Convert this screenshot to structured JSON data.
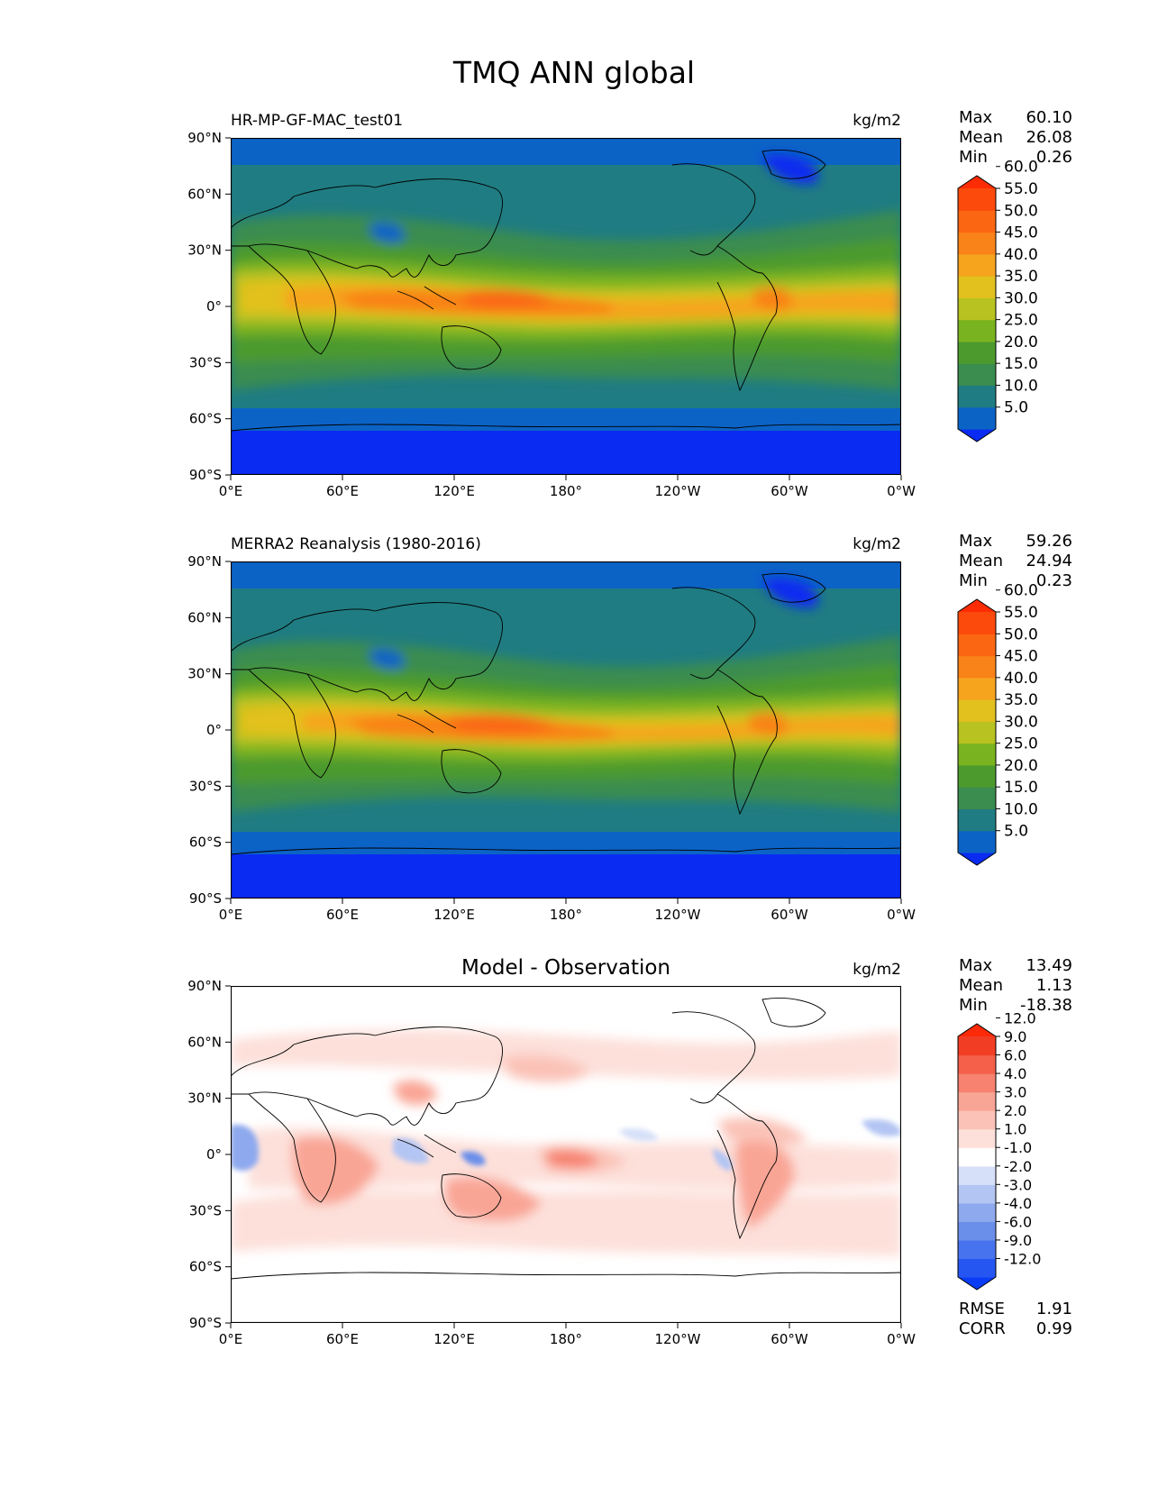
{
  "figure": {
    "title": "TMQ ANN global"
  },
  "chart_data": [
    {
      "type": "heatmap",
      "panel": "test",
      "title": "HR-MP-GF-MAC_test01",
      "units": "kg/m2",
      "stats": [
        {
          "label": "Max",
          "value": "60.10"
        },
        {
          "label": "Mean",
          "value": "26.08"
        },
        {
          "label": "Min",
          "value": "0.26"
        }
      ],
      "colorbar": {
        "ticks": [
          "5.0",
          "10.0",
          "15.0",
          "20.0",
          "25.0",
          "30.0",
          "35.0",
          "40.0",
          "45.0",
          "50.0",
          "55.0",
          "60.0"
        ],
        "colors": [
          "#0a2bf2",
          "#0c63c6",
          "#1f7c82",
          "#3a8c4f",
          "#4c9a2e",
          "#7ab320",
          "#b8c221",
          "#e2c11f",
          "#f6a41e",
          "#f98318",
          "#fb6612",
          "#fc4a0c",
          "#fd2c05"
        ],
        "extend": "both"
      },
      "xticks": [
        "0°E",
        "60°E",
        "120°E",
        "180°",
        "120°W",
        "60°W",
        "0°W"
      ],
      "yticks": [
        "90°N",
        "60°N",
        "30°N",
        "0°",
        "30°S",
        "60°S",
        "90°S"
      ],
      "xlim": [
        0,
        360
      ],
      "ylim": [
        -90,
        90
      ]
    },
    {
      "type": "heatmap",
      "panel": "reference",
      "title": "MERRA2 Reanalysis (1980-2016)",
      "units": "kg/m2",
      "stats": [
        {
          "label": "Max",
          "value": "59.26"
        },
        {
          "label": "Mean",
          "value": "24.94"
        },
        {
          "label": "Min",
          "value": "0.23"
        }
      ],
      "colorbar": {
        "ticks": [
          "5.0",
          "10.0",
          "15.0",
          "20.0",
          "25.0",
          "30.0",
          "35.0",
          "40.0",
          "45.0",
          "50.0",
          "55.0",
          "60.0"
        ],
        "colors": [
          "#0a2bf2",
          "#0c63c6",
          "#1f7c82",
          "#3a8c4f",
          "#4c9a2e",
          "#7ab320",
          "#b8c221",
          "#e2c11f",
          "#f6a41e",
          "#f98318",
          "#fb6612",
          "#fc4a0c",
          "#fd2c05"
        ],
        "extend": "both"
      },
      "xticks": [
        "0°E",
        "60°E",
        "120°E",
        "180°",
        "120°W",
        "60°W",
        "0°W"
      ],
      "yticks": [
        "90°N",
        "60°N",
        "30°N",
        "0°",
        "30°S",
        "60°S",
        "90°S"
      ],
      "xlim": [
        0,
        360
      ],
      "ylim": [
        -90,
        90
      ]
    },
    {
      "type": "heatmap",
      "panel": "difference",
      "title": "Model - Observation",
      "units": "kg/m2",
      "stats": [
        {
          "label": "Max",
          "value": "13.49"
        },
        {
          "label": "Mean",
          "value": "1.13"
        },
        {
          "label": "Min",
          "value": "-18.38"
        }
      ],
      "colorbar": {
        "ticks": [
          "-12.0",
          "-9.0",
          "-6.0",
          "-4.0",
          "-3.0",
          "-2.0",
          "-1.0",
          "1.0",
          "2.0",
          "3.0",
          "4.0",
          "6.0",
          "9.0",
          "12.0"
        ],
        "colors": [
          "#0a3cf5",
          "#2656f2",
          "#4873ee",
          "#6a8fea",
          "#8ea9ee",
          "#b3c5f3",
          "#d6e0f8",
          "#ffffff",
          "#fde0da",
          "#fbc3b8",
          "#f9a595",
          "#f6826f",
          "#f4604a",
          "#f23d25",
          "#fb2a08"
        ],
        "extend": "both"
      },
      "xticks": [
        "0°E",
        "60°E",
        "120°E",
        "180°",
        "120°W",
        "60°W",
        "0°W"
      ],
      "yticks": [
        "90°N",
        "60°N",
        "30°N",
        "0°",
        "30°S",
        "60°S",
        "90°S"
      ],
      "xlim": [
        0,
        360
      ],
      "ylim": [
        -90,
        90
      ],
      "metrics": [
        {
          "label": "RMSE",
          "value": "1.91"
        },
        {
          "label": "CORR",
          "value": "0.99"
        }
      ]
    }
  ]
}
